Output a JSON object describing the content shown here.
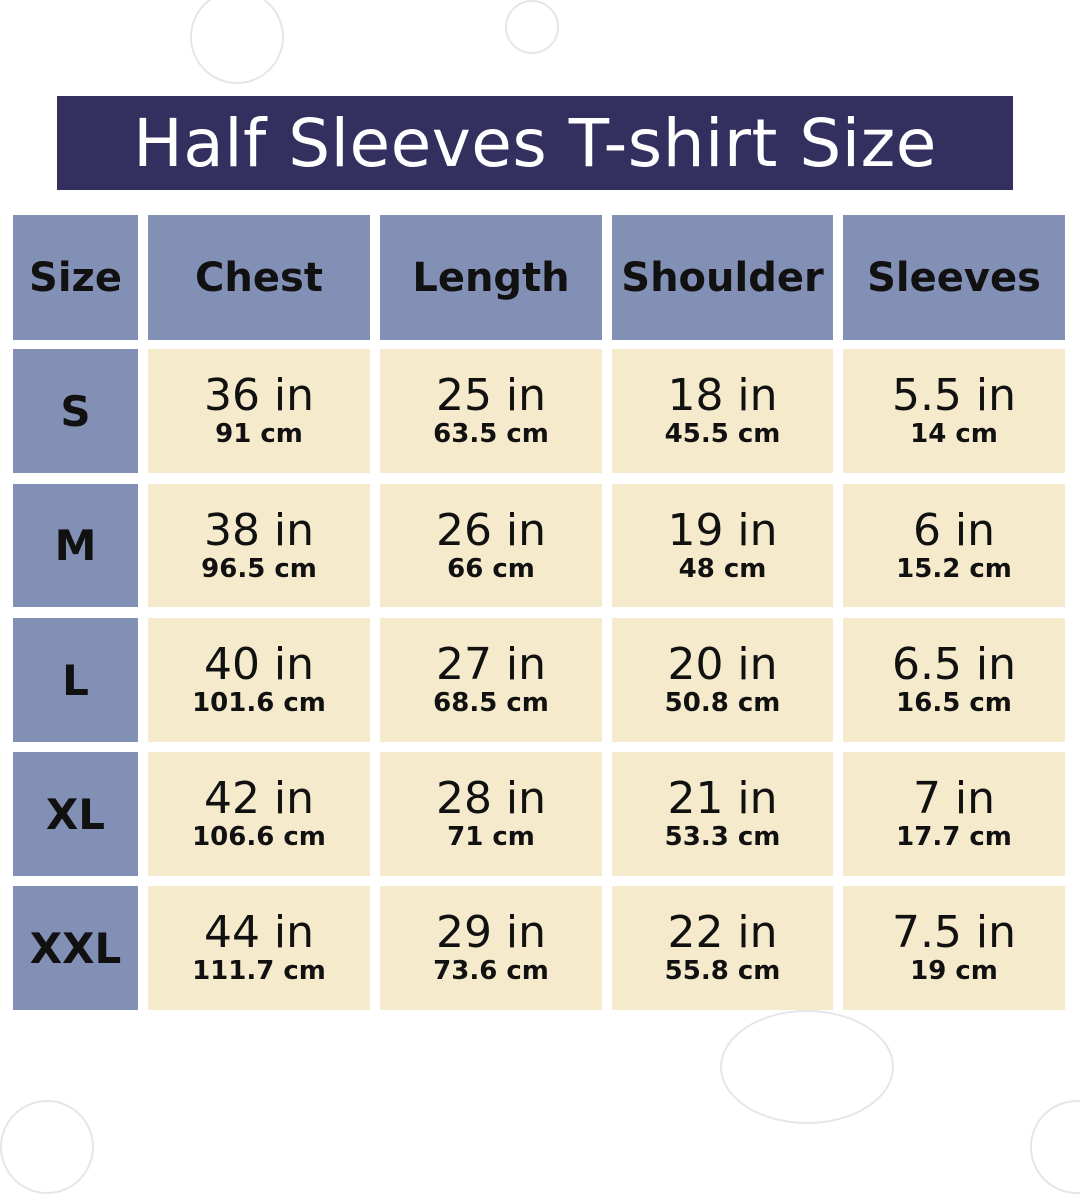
{
  "title": "Half Sleeves T-shirt Size",
  "colors": {
    "title_bg": "#33305f",
    "header_bg": "#8390b6",
    "cell_bg": "#f5eacb"
  },
  "headers": [
    "Size",
    "Chest",
    "Length",
    "Shoulder",
    "Sleeves"
  ],
  "rows": [
    {
      "size": "S",
      "cells": [
        {
          "in": "36 in",
          "cm": "91 cm"
        },
        {
          "in": "25 in",
          "cm": "63.5 cm"
        },
        {
          "in": "18 in",
          "cm": "45.5 cm"
        },
        {
          "in": "5.5 in",
          "cm": "14 cm"
        }
      ]
    },
    {
      "size": "M",
      "cells": [
        {
          "in": "38 in",
          "cm": "96.5 cm"
        },
        {
          "in": "26 in",
          "cm": "66 cm"
        },
        {
          "in": "19 in",
          "cm": "48 cm"
        },
        {
          "in": "6 in",
          "cm": "15.2 cm"
        }
      ]
    },
    {
      "size": "L",
      "cells": [
        {
          "in": "40 in",
          "cm": "101.6 cm"
        },
        {
          "in": "27 in",
          "cm": "68.5 cm"
        },
        {
          "in": "20 in",
          "cm": "50.8 cm"
        },
        {
          "in": "6.5 in",
          "cm": "16.5 cm"
        }
      ]
    },
    {
      "size": "XL",
      "cells": [
        {
          "in": "42 in",
          "cm": "106.6 cm"
        },
        {
          "in": "28 in",
          "cm": "71 cm"
        },
        {
          "in": "21 in",
          "cm": "53.3 cm"
        },
        {
          "in": "7 in",
          "cm": "17.7 cm"
        }
      ]
    },
    {
      "size": "XXL",
      "cells": [
        {
          "in": "44 in",
          "cm": "111.7 cm"
        },
        {
          "in": "29 in",
          "cm": "73.6 cm"
        },
        {
          "in": "22 in",
          "cm": "55.8 cm"
        },
        {
          "in": "7.5 in",
          "cm": "19 cm"
        }
      ]
    }
  ]
}
